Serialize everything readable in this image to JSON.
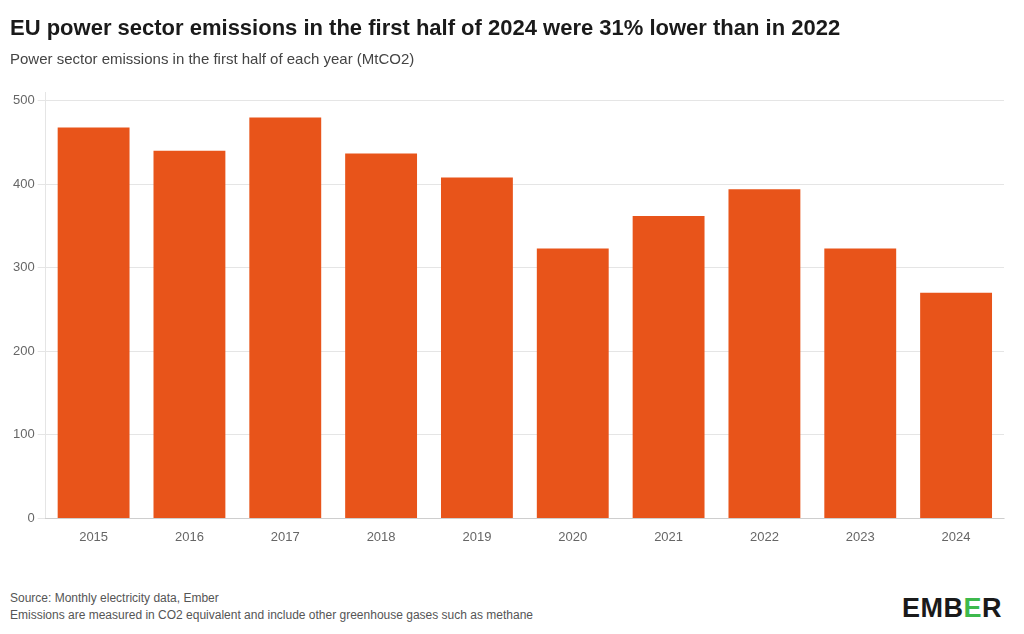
{
  "chart_data": {
    "type": "bar",
    "title": "EU power sector emissions in the first half of 2024 were 31% lower than in 2022",
    "subtitle": "Power sector emissions in the first half of each year (MtCO2)",
    "annotations": [
      "Source: Monthly electricity data, Ember\nEmissions are measured in CO2 equivalent and include other greenhouse gases such as methane",
      "EMBER"
    ],
    "categories": [
      "2015",
      "2016",
      "2017",
      "2018",
      "2019",
      "2020",
      "2021",
      "2022",
      "2023",
      "2024"
    ],
    "values": [
      468,
      440,
      480,
      437,
      408,
      323,
      362,
      394,
      323,
      270
    ],
    "color": "#E8541A",
    "ylim": [
      0,
      510
    ],
    "yticks": [
      0,
      100,
      200,
      300,
      400,
      500
    ],
    "grid": true
  }
}
